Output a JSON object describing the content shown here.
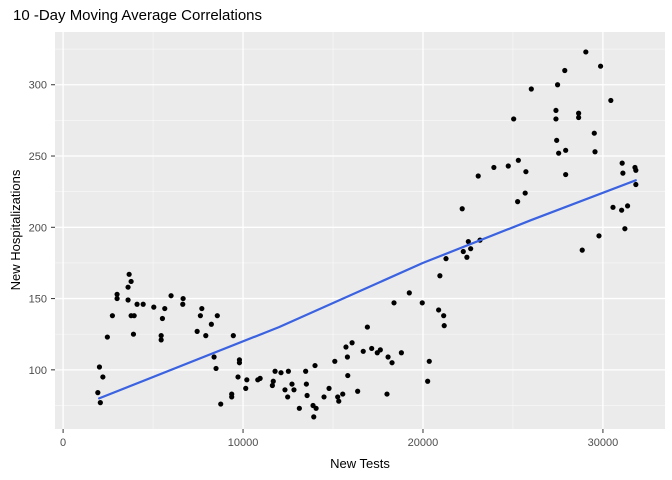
{
  "chart_data": {
    "type": "scatter",
    "title": "10 -Day Moving Average Correlations",
    "xlabel": "New Tests",
    "ylabel": "New Hospitalizations",
    "grid": true,
    "legend": false,
    "x_domain": [
      -450,
      33450
    ],
    "y_domain": [
      58.5,
      337
    ],
    "x_ticks": [
      0,
      10000,
      20000,
      30000
    ],
    "x_tick_labels": [
      "0",
      "10000",
      "20000",
      "30000"
    ],
    "x_minor_ticks": [
      5000,
      15000,
      25000
    ],
    "y_ticks": [
      100,
      150,
      200,
      250,
      300
    ],
    "y_tick_labels": [
      "100",
      "150",
      "200",
      "250",
      "300"
    ],
    "y_minor_ticks": [
      75,
      125,
      175,
      225,
      275,
      325
    ],
    "colors": {
      "panel_bg": "#EBEBEB",
      "grid_major": "#FFFFFF",
      "grid_minor": "#F7F7F7",
      "tick_label": "#4D4D4D",
      "tick_mark": "#333333",
      "point": "#000000",
      "trend": "#3B62E0"
    },
    "trend_line": {
      "color": "#3B62E0",
      "points": [
        [
          2000,
          80
        ],
        [
          12000,
          130
        ],
        [
          20000,
          175
        ],
        [
          26000,
          205
        ],
        [
          31830,
          233
        ]
      ]
    },
    "points": [
      [
        1930,
        84
      ],
      [
        2070,
        77
      ],
      [
        2020,
        102
      ],
      [
        2210,
        95
      ],
      [
        2460,
        123
      ],
      [
        2740,
        138
      ],
      [
        3000,
        153
      ],
      [
        3000,
        150
      ],
      [
        3610,
        158
      ],
      [
        3610,
        149
      ],
      [
        3670,
        167
      ],
      [
        3780,
        162
      ],
      [
        3780,
        138
      ],
      [
        3950,
        138
      ],
      [
        3910,
        125
      ],
      [
        4110,
        146
      ],
      [
        4450,
        146
      ],
      [
        5040,
        144
      ],
      [
        5650,
        143
      ],
      [
        5450,
        124
      ],
      [
        5450,
        121
      ],
      [
        5520,
        136
      ],
      [
        6000,
        152
      ],
      [
        6650,
        146
      ],
      [
        6670,
        150
      ],
      [
        7450,
        127
      ],
      [
        7630,
        138
      ],
      [
        7710,
        143
      ],
      [
        7930,
        124
      ],
      [
        8240,
        132
      ],
      [
        8570,
        138
      ],
      [
        8390,
        109
      ],
      [
        8500,
        101
      ],
      [
        8760,
        76
      ],
      [
        9370,
        83
      ],
      [
        9370,
        81
      ],
      [
        9460,
        124
      ],
      [
        9720,
        95
      ],
      [
        9800,
        107
      ],
      [
        9800,
        105
      ],
      [
        10150,
        87
      ],
      [
        10210,
        93
      ],
      [
        10820,
        93
      ],
      [
        10950,
        94
      ],
      [
        11630,
        89
      ],
      [
        11680,
        92
      ],
      [
        11780,
        99
      ],
      [
        12110,
        98
      ],
      [
        12330,
        86
      ],
      [
        12480,
        81
      ],
      [
        12520,
        99
      ],
      [
        12720,
        90
      ],
      [
        12830,
        86
      ],
      [
        13130,
        73
      ],
      [
        13480,
        99
      ],
      [
        13520,
        90
      ],
      [
        13560,
        82
      ],
      [
        13890,
        75
      ],
      [
        13930,
        67
      ],
      [
        14000,
        103
      ],
      [
        14060,
        73
      ],
      [
        14500,
        81
      ],
      [
        14780,
        87
      ],
      [
        15100,
        106
      ],
      [
        15260,
        81
      ],
      [
        15320,
        78
      ],
      [
        15540,
        83
      ],
      [
        15720,
        116
      ],
      [
        15800,
        109
      ],
      [
        15820,
        96
      ],
      [
        16060,
        119
      ],
      [
        16370,
        85
      ],
      [
        16680,
        113
      ],
      [
        16910,
        130
      ],
      [
        17150,
        115
      ],
      [
        17460,
        112
      ],
      [
        17630,
        114
      ],
      [
        18000,
        83
      ],
      [
        18060,
        109
      ],
      [
        18280,
        105
      ],
      [
        18390,
        147
      ],
      [
        18800,
        112
      ],
      [
        19240,
        154
      ],
      [
        19960,
        147
      ],
      [
        20260,
        92
      ],
      [
        20350,
        106
      ],
      [
        20870,
        142
      ],
      [
        20940,
        166
      ],
      [
        21150,
        138
      ],
      [
        21180,
        131
      ],
      [
        21280,
        178
      ],
      [
        22180,
        213
      ],
      [
        22240,
        183
      ],
      [
        22440,
        179
      ],
      [
        22520,
        190
      ],
      [
        22650,
        185
      ],
      [
        23070,
        236
      ],
      [
        23170,
        191
      ],
      [
        23940,
        242
      ],
      [
        24740,
        243
      ],
      [
        25040,
        276
      ],
      [
        25260,
        218
      ],
      [
        25300,
        247
      ],
      [
        25680,
        224
      ],
      [
        25720,
        239
      ],
      [
        26020,
        297
      ],
      [
        27390,
        282
      ],
      [
        27390,
        276
      ],
      [
        27430,
        261
      ],
      [
        27480,
        300
      ],
      [
        27540,
        252
      ],
      [
        27880,
        310
      ],
      [
        27930,
        254
      ],
      [
        27930,
        237
      ],
      [
        28650,
        280
      ],
      [
        28650,
        277
      ],
      [
        28850,
        184
      ],
      [
        29050,
        323
      ],
      [
        29520,
        266
      ],
      [
        29560,
        253
      ],
      [
        29780,
        194
      ],
      [
        29870,
        313
      ],
      [
        30440,
        289
      ],
      [
        30560,
        214
      ],
      [
        31040,
        212
      ],
      [
        31070,
        245
      ],
      [
        31110,
        238
      ],
      [
        31220,
        199
      ],
      [
        31370,
        215
      ],
      [
        31780,
        242
      ],
      [
        31830,
        240
      ],
      [
        31830,
        230
      ]
    ]
  },
  "layout_text": {
    "note": ""
  }
}
